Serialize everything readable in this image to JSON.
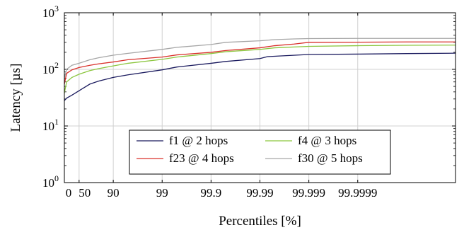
{
  "chart_data": {
    "type": "line",
    "xlabel": "Percentiles [%]",
    "ylabel": "Latency [µs]",
    "x_scale": "nines (log of 1/(1-p))",
    "y_scale": "log",
    "xlim": [
      0,
      99.999999
    ],
    "ylim": [
      1,
      1000
    ],
    "x_ticks": [
      0,
      50,
      90,
      99,
      99.9,
      99.99,
      99.999,
      99.9999
    ],
    "x_tick_labels": [
      "0",
      "50",
      "90",
      "99",
      "99.9",
      "99.99",
      "99.999",
      "99.9999"
    ],
    "y_ticks": [
      1,
      10,
      100,
      1000
    ],
    "y_tick_labels": [
      {
        "base": "10",
        "exp": "0"
      },
      {
        "base": "10",
        "exp": "1"
      },
      {
        "base": "10",
        "exp": "2"
      },
      {
        "base": "10",
        "exp": "3"
      }
    ],
    "grid": true,
    "legend": {
      "position": "lower-center",
      "columns": 2
    },
    "series": [
      {
        "name": "f1 @ 2 hops",
        "color": "#1a1a5e",
        "points": [
          [
            0,
            28
          ],
          [
            10,
            31
          ],
          [
            30,
            35
          ],
          [
            50,
            42
          ],
          [
            70,
            55
          ],
          [
            80,
            62
          ],
          [
            90,
            72
          ],
          [
            95,
            80
          ],
          [
            99,
            98
          ],
          [
            99.5,
            110
          ],
          [
            99.9,
            128
          ],
          [
            99.95,
            138
          ],
          [
            99.99,
            155
          ],
          [
            99.993,
            168
          ],
          [
            99.996,
            172
          ],
          [
            99.999,
            183
          ],
          [
            99.9999,
            186
          ],
          [
            99.99999,
            190
          ],
          [
            99.999999,
            193
          ]
        ]
      },
      {
        "name": "f4 @ 3 hops",
        "color": "#8cc63f",
        "points": [
          [
            0,
            38
          ],
          [
            10,
            60
          ],
          [
            30,
            72
          ],
          [
            50,
            82
          ],
          [
            70,
            95
          ],
          [
            80,
            103
          ],
          [
            90,
            115
          ],
          [
            95,
            128
          ],
          [
            99,
            150
          ],
          [
            99.5,
            165
          ],
          [
            99.9,
            190
          ],
          [
            99.95,
            205
          ],
          [
            99.99,
            225
          ],
          [
            99.995,
            240
          ],
          [
            99.999,
            255
          ],
          [
            99.9999,
            262
          ],
          [
            99.99999,
            266
          ],
          [
            99.999999,
            268
          ]
        ]
      },
      {
        "name": "f23 @ 4 hops",
        "color": "#d9302b",
        "points": [
          [
            0,
            55
          ],
          [
            10,
            85
          ],
          [
            30,
            98
          ],
          [
            50,
            108
          ],
          [
            70,
            118
          ],
          [
            80,
            125
          ],
          [
            90,
            135
          ],
          [
            95,
            148
          ],
          [
            99,
            165
          ],
          [
            99.5,
            180
          ],
          [
            99.9,
            200
          ],
          [
            99.95,
            215
          ],
          [
            99.99,
            240
          ],
          [
            99.995,
            262
          ],
          [
            99.998,
            280
          ],
          [
            99.999,
            300
          ],
          [
            99.9999,
            302
          ],
          [
            99.99999,
            305
          ],
          [
            99.999999,
            305
          ]
        ]
      },
      {
        "name": "f30 @ 5 hops",
        "color": "#a6a6a6",
        "points": [
          [
            0,
            70
          ],
          [
            10,
            100
          ],
          [
            30,
            118
          ],
          [
            50,
            128
          ],
          [
            70,
            148
          ],
          [
            80,
            160
          ],
          [
            90,
            178
          ],
          [
            95,
            192
          ],
          [
            99,
            225
          ],
          [
            99.5,
            245
          ],
          [
            99.9,
            275
          ],
          [
            99.95,
            300
          ],
          [
            99.99,
            320
          ],
          [
            99.995,
            335
          ],
          [
            99.998,
            345
          ],
          [
            99.999,
            350
          ],
          [
            99.9999,
            352
          ],
          [
            99.99999,
            352
          ],
          [
            99.999999,
            352
          ]
        ]
      }
    ]
  }
}
